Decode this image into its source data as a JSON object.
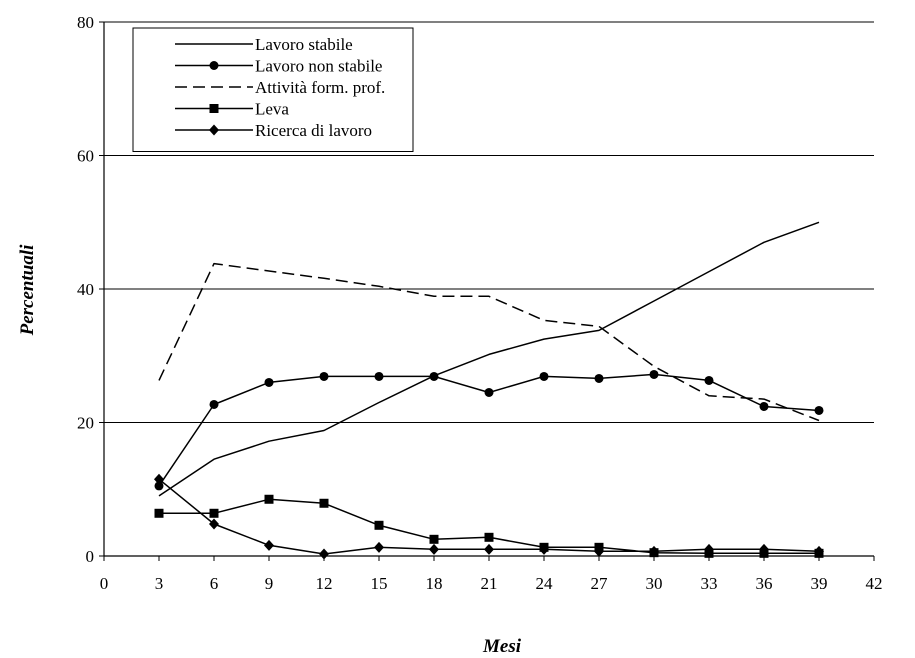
{
  "chart_data": {
    "type": "line",
    "xlabel": "Mesi",
    "ylabel": "Percentuali",
    "xlim": [
      0,
      42
    ],
    "ylim": [
      0,
      80
    ],
    "xticks": [
      "0",
      "3",
      "6",
      "9",
      "12",
      "15",
      "18",
      "21",
      "24",
      "27",
      "30",
      "33",
      "36",
      "39",
      "42"
    ],
    "yticks": [
      "0",
      "20",
      "40",
      "60",
      "80"
    ],
    "grid": "horizontal",
    "legend_position": "top-left",
    "x": [
      3,
      6,
      9,
      12,
      15,
      18,
      21,
      24,
      27,
      30,
      33,
      36,
      39
    ],
    "series": [
      {
        "name": "Lavoro stabile",
        "style": "solid",
        "marker": "none",
        "values": [
          9,
          14.5,
          17.2,
          18.8,
          23,
          27,
          30.2,
          32.5,
          33.8,
          38.2,
          42.6,
          47,
          50
        ]
      },
      {
        "name": "Lavoro non stabile",
        "style": "solid",
        "marker": "circle",
        "values": [
          10.5,
          22.7,
          26,
          26.9,
          26.9,
          26.9,
          24.5,
          26.9,
          26.6,
          27.2,
          26.3,
          22.4,
          21.8
        ]
      },
      {
        "name": "Attività form. prof.",
        "style": "dashed",
        "marker": "none",
        "values": [
          26.3,
          43.8,
          42.7,
          41.6,
          40.4,
          38.9,
          38.9,
          35.3,
          34.4,
          28.4,
          24,
          23.5,
          20.3
        ]
      },
      {
        "name": "Leva",
        "style": "solid",
        "marker": "square",
        "values": [
          6.4,
          6.4,
          8.5,
          7.9,
          4.6,
          2.5,
          2.8,
          1.3,
          1.3,
          0.5,
          0.4,
          0.4,
          0.4
        ]
      },
      {
        "name": "Ricerca di lavoro",
        "style": "solid",
        "marker": "diamond",
        "values": [
          11.5,
          4.8,
          1.6,
          0.3,
          1.3,
          1,
          1,
          1,
          0.7,
          0.7,
          1,
          1,
          0.7
        ]
      }
    ]
  }
}
